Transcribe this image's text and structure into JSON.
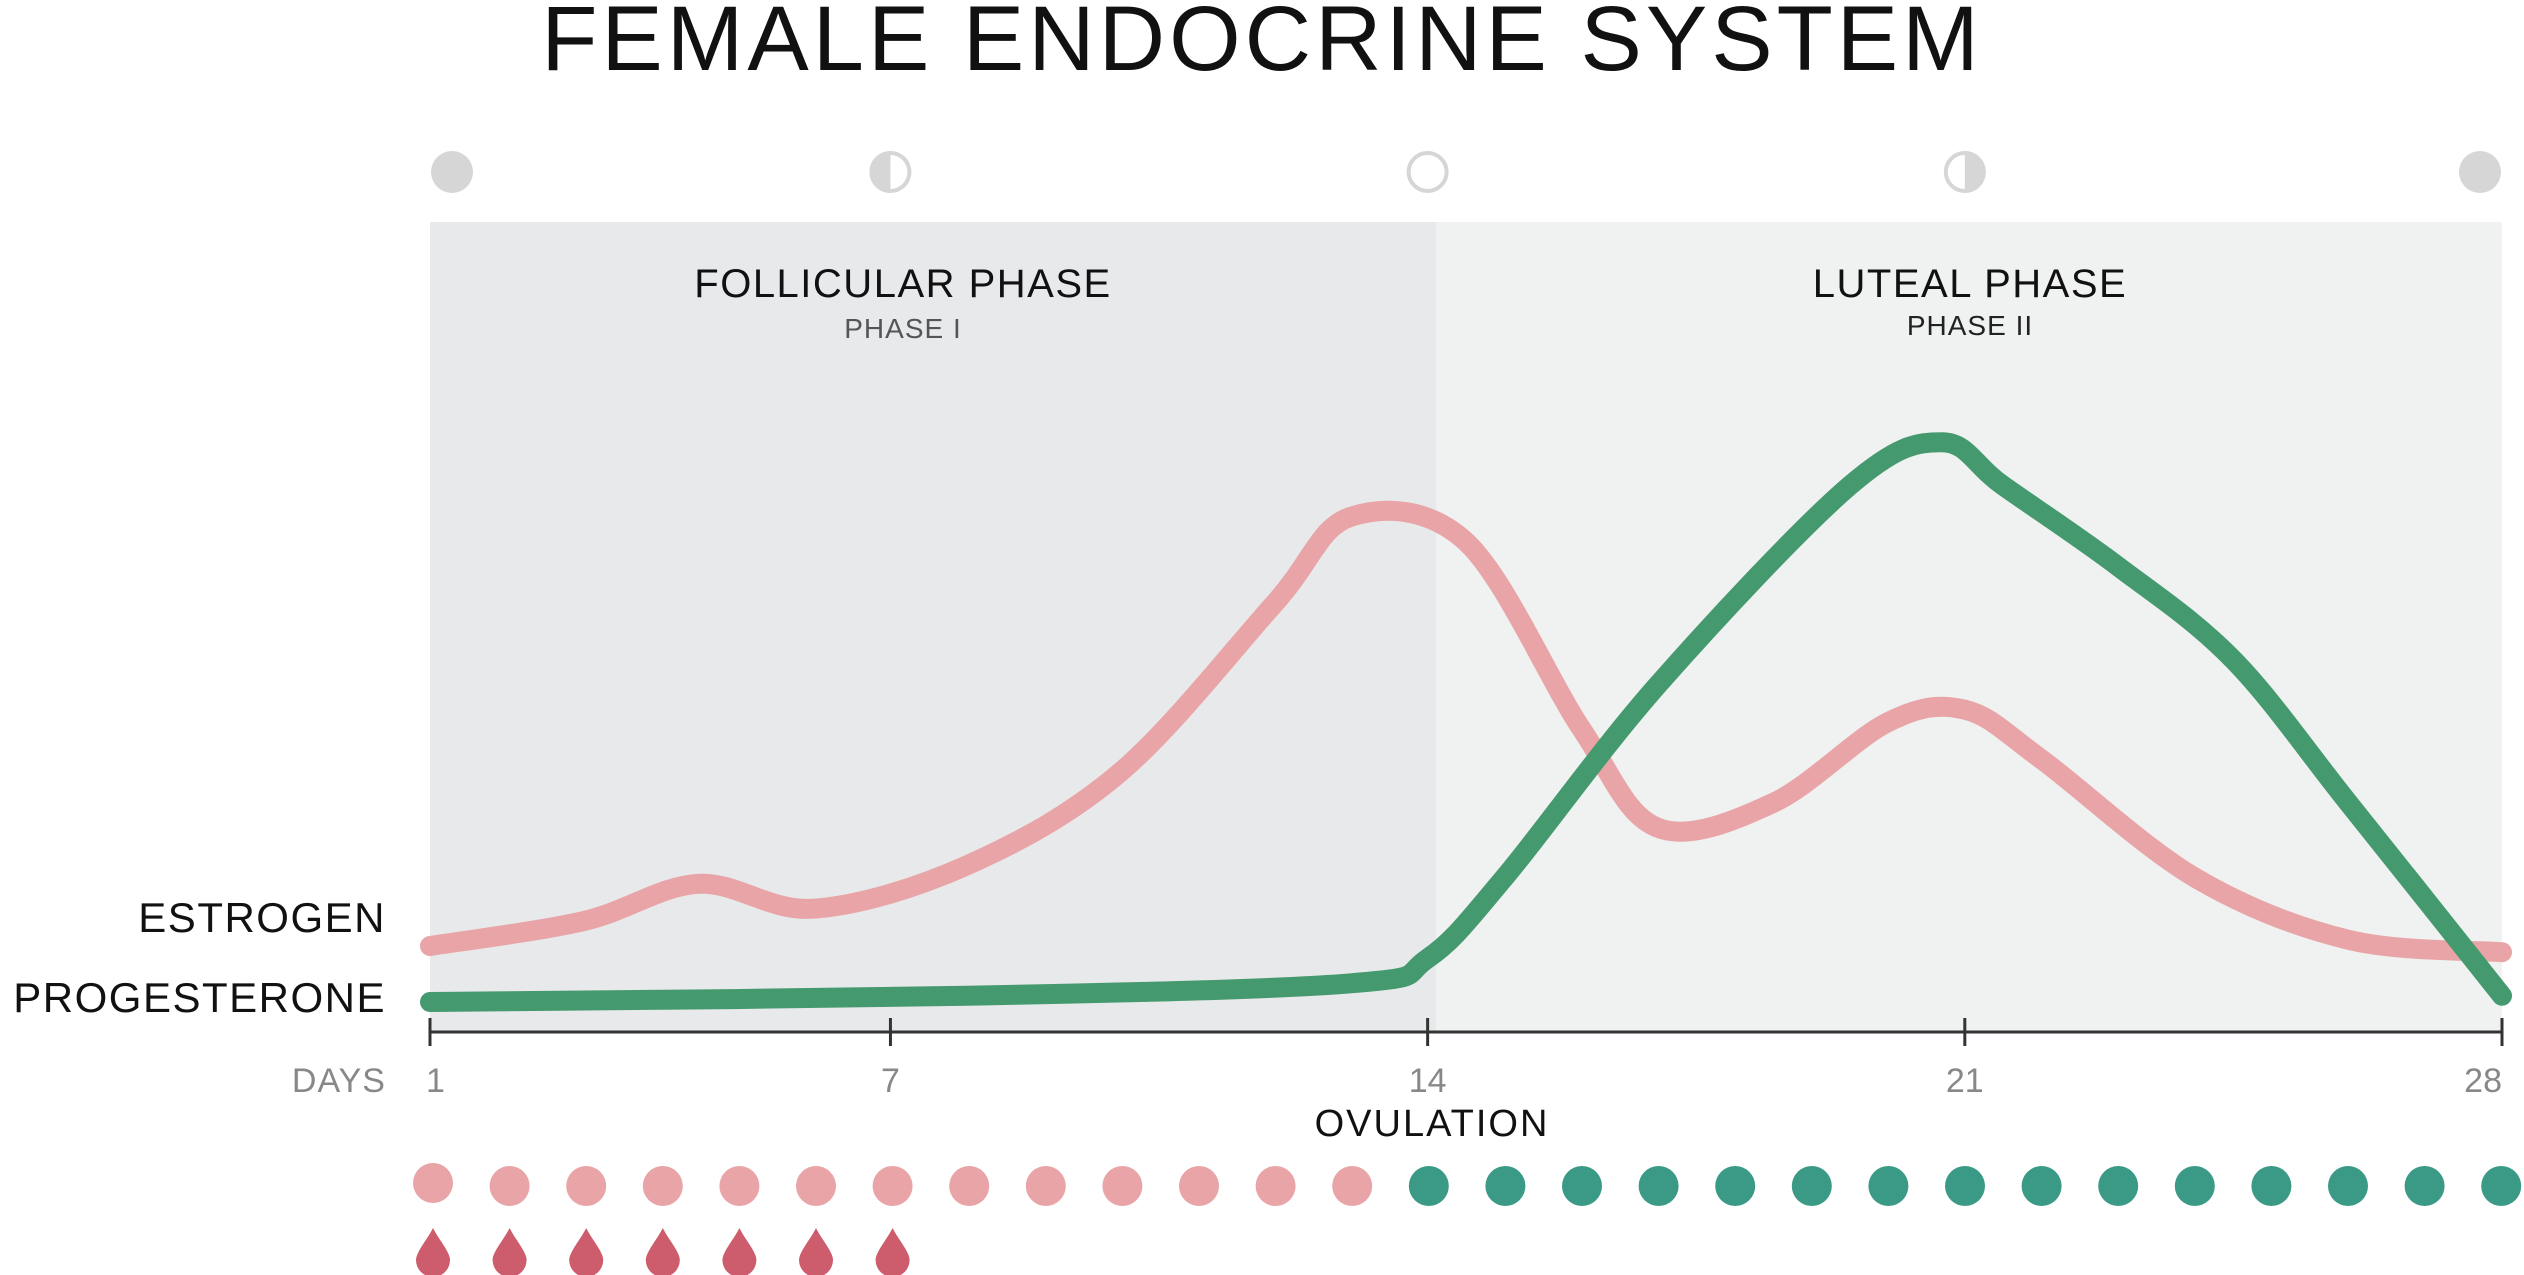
{
  "title": "FEMALE ENDOCRINE SYSTEM",
  "phases": [
    {
      "name": "FOLLICULAR PHASE",
      "sub": "PHASE I",
      "days": [
        1,
        14
      ]
    },
    {
      "name": "LUTEAL PHASE",
      "sub": "PHASE II",
      "days": [
        14,
        28
      ]
    }
  ],
  "series_labels": {
    "estrogen": "ESTROGEN",
    "progesterone": "PROGESTERONE"
  },
  "axis": {
    "label": "DAYS",
    "ticks": [
      {
        "day": 1,
        "label": "1"
      },
      {
        "day": 7,
        "label": "7"
      },
      {
        "day": 14,
        "label": "14"
      },
      {
        "day": 21,
        "label": "21"
      },
      {
        "day": 28,
        "label": "28"
      }
    ],
    "event_label": "OVULATION",
    "event_day": 14
  },
  "moon_phases": [
    {
      "day": 1,
      "icon": "new-moon-icon"
    },
    {
      "day": 7,
      "icon": "first-quarter-moon-icon"
    },
    {
      "day": 14,
      "icon": "full-moon-icon"
    },
    {
      "day": 21,
      "icon": "last-quarter-moon-icon"
    },
    {
      "day": 28,
      "icon": "new-moon-icon"
    }
  ],
  "chart_data": {
    "type": "line",
    "x_range": [
      1,
      28
    ],
    "y_range": [
      0,
      100
    ],
    "series": [
      {
        "name": "ESTROGEN",
        "color": "#e8a4a6",
        "points": [
          [
            1,
            9
          ],
          [
            3,
            13
          ],
          [
            4.5,
            19
          ],
          [
            6,
            15
          ],
          [
            8,
            22
          ],
          [
            10,
            37
          ],
          [
            12,
            64
          ],
          [
            13,
            78
          ],
          [
            14.5,
            74
          ],
          [
            16,
            44
          ],
          [
            17,
            28
          ],
          [
            18.5,
            32
          ],
          [
            20,
            45
          ],
          [
            21,
            47
          ],
          [
            22,
            39
          ],
          [
            24,
            20
          ],
          [
            26,
            10
          ],
          [
            28,
            8
          ]
        ]
      },
      {
        "name": "PROGESTERONE",
        "color": "#45996e",
        "points": [
          [
            1,
            0
          ],
          [
            8,
            1
          ],
          [
            13,
            3
          ],
          [
            14,
            7
          ],
          [
            15,
            20
          ],
          [
            17,
            51
          ],
          [
            19.5,
            83
          ],
          [
            20.7,
            90
          ],
          [
            21.5,
            83
          ],
          [
            23,
            70
          ],
          [
            24.5,
            55
          ],
          [
            26,
            32
          ],
          [
            28,
            1
          ]
        ]
      }
    ]
  },
  "day_dots": {
    "count": 28,
    "follicular_color": "#e8a4a6",
    "luteal_color": "#3a9a86",
    "split_after_day": 13
  },
  "flow_drops": {
    "count": 7,
    "color": "#cd5c6c",
    "days": [
      1,
      2,
      3,
      4,
      5,
      6,
      7
    ]
  }
}
